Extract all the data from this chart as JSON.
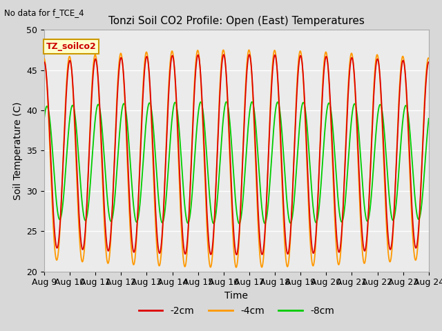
{
  "title": "Tonzi Soil CO2 Profile: Open (East) Temperatures",
  "xlabel": "Time",
  "ylabel": "Soil Temperature (C)",
  "annotation": "No data for f_TCE_4",
  "legend_label": "TZ_soilco2",
  "ylim": [
    20,
    50
  ],
  "xtick_labels": [
    "Aug 9",
    "Aug 10",
    "Aug 11",
    "Aug 12",
    "Aug 13",
    "Aug 14",
    "Aug 15",
    "Aug 16",
    "Aug 17",
    "Aug 18",
    "Aug 19",
    "Aug 20",
    "Aug 21",
    "Aug 22",
    "Aug 23",
    "Aug 24"
  ],
  "color_2cm": "#dd0000",
  "color_4cm": "#ff9900",
  "color_8cm": "#00cc00",
  "lw": 1.3,
  "bg_color": "#d8d8d8",
  "plot_bg": "#ebebeb",
  "legend_box_color": "#ffffcc",
  "legend_box_edge": "#cc9900",
  "n_points": 3000,
  "period_days": 1.0,
  "start_day": 0,
  "end_day": 15,
  "mean_red": 34.5,
  "amp_red": 11.5,
  "phase_red": 1.5707963,
  "mean_orange": 34.0,
  "amp_orange": 12.5,
  "phase_orange": 1.65,
  "mean_green": 33.5,
  "amp_green": 7.0,
  "phase_green": 0.9,
  "amp_grow_rate": 0.08
}
